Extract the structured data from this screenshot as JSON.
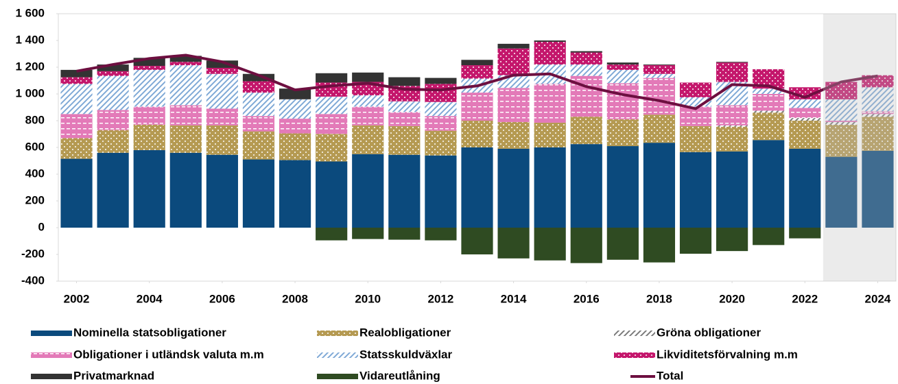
{
  "chart_data": {
    "type": "bar",
    "stacked": true,
    "x": [
      2002,
      2003,
      2004,
      2005,
      2006,
      2007,
      2008,
      2009,
      2010,
      2011,
      2012,
      2013,
      2014,
      2015,
      2016,
      2017,
      2018,
      2019,
      2020,
      2021,
      2022,
      2023,
      2024
    ],
    "xticks": [
      2002,
      2004,
      2006,
      2008,
      2010,
      2012,
      2014,
      2016,
      2018,
      2020,
      2022,
      2024
    ],
    "ylim": [
      -400,
      1600
    ],
    "yticks": [
      {
        "value": 1600,
        "label": "1 600"
      },
      {
        "value": 1400,
        "label": "1 400"
      },
      {
        "value": 1200,
        "label": "1 200"
      },
      {
        "value": 1000,
        "label": "1 000"
      },
      800,
      600,
      400,
      200,
      0,
      -200,
      -400
    ],
    "series": [
      {
        "name": "Nominella statsobligationer",
        "color": "#0b4a7d",
        "pattern": "solid",
        "values": [
          515,
          560,
          580,
          560,
          545,
          510,
          505,
          495,
          550,
          545,
          540,
          600,
          590,
          600,
          625,
          610,
          635,
          565,
          570,
          655,
          590,
          530,
          575
        ]
      },
      {
        "name": "Realobligationer",
        "color": "#b59a52",
        "pattern": "dots",
        "values": [
          155,
          170,
          190,
          205,
          220,
          210,
          200,
          205,
          215,
          215,
          185,
          200,
          200,
          185,
          205,
          200,
          210,
          195,
          185,
          205,
          210,
          240,
          255
        ]
      },
      {
        "name": "Gröna obligationer",
        "color": "#7a7a7a",
        "pattern": "hatch",
        "values": [
          0,
          0,
          0,
          0,
          0,
          0,
          0,
          0,
          0,
          0,
          0,
          0,
          0,
          0,
          0,
          0,
          0,
          0,
          10,
          15,
          20,
          20,
          20
        ]
      },
      {
        "name": "Obligationer i utländsk valuta m.m",
        "color": "#e37ab8",
        "pattern": "dashes",
        "values": [
          180,
          150,
          135,
          150,
          125,
          115,
          110,
          150,
          140,
          105,
          110,
          210,
          255,
          290,
          305,
          270,
          275,
          145,
          150,
          125,
          75,
          10,
          20
        ]
      },
      {
        "name": "Statsskuldväxlar",
        "color": "#7fa9d6",
        "pattern": "hatch",
        "values": [
          225,
          255,
          275,
          300,
          260,
          175,
          145,
          130,
          85,
          80,
          105,
          105,
          95,
          145,
          85,
          100,
          30,
          70,
          175,
          40,
          65,
          160,
          180
        ]
      },
      {
        "name": "Likviditetsförvalning m.m",
        "color": "#c4176c",
        "pattern": "dots",
        "values": [
          50,
          35,
          30,
          25,
          45,
          85,
          0,
          105,
          100,
          115,
          135,
          100,
          200,
          170,
          90,
          40,
          65,
          110,
          145,
          145,
          90,
          130,
          90
        ]
      },
      {
        "name": "Privatmarknad",
        "color": "#333333",
        "pattern": "solid",
        "values": [
          55,
          50,
          60,
          45,
          55,
          55,
          80,
          70,
          70,
          65,
          45,
          40,
          35,
          10,
          10,
          15,
          5,
          0,
          5,
          0,
          0,
          0,
          0
        ]
      },
      {
        "name": "Vidareutlåning",
        "color": "#2f4b22",
        "pattern": "solid",
        "values": [
          0,
          0,
          0,
          0,
          0,
          0,
          0,
          -95,
          -85,
          -90,
          -95,
          -200,
          -230,
          -245,
          -265,
          -240,
          -260,
          -195,
          -175,
          -130,
          -80,
          0,
          0
        ]
      },
      {
        "name": "Total",
        "color": "#6d0f40",
        "type": "line",
        "values": [
          1170,
          1220,
          1265,
          1290,
          1240,
          1140,
          1030,
          1060,
          1080,
          1035,
          1030,
          1060,
          1140,
          1150,
          1055,
          995,
          950,
          890,
          1070,
          1060,
          975,
          1090,
          1135
        ]
      }
    ]
  }
}
